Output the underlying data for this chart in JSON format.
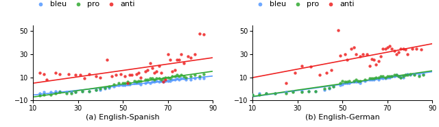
{
  "title_a": "(a) English-Spanish",
  "title_b": "(b) English-German",
  "legend_labels": [
    "bleu",
    "pro",
    "anti"
  ],
  "colors": {
    "bleu": "#5599ff",
    "pro": "#33aa33",
    "anti": "#ee2222"
  },
  "xlim": [
    10,
    90
  ],
  "ylim": [
    -10,
    55
  ],
  "yticks": [
    -10,
    10,
    30,
    50
  ],
  "xticks": [
    10,
    30,
    50,
    70,
    90
  ],
  "es_bleu_x": [
    13,
    15,
    18,
    20,
    22,
    25,
    27,
    29,
    32,
    35,
    38,
    40,
    42,
    44,
    46,
    48,
    50,
    51,
    52,
    53,
    55,
    56,
    57,
    58,
    60,
    61,
    62,
    63,
    64,
    65,
    66,
    67,
    68,
    69,
    70,
    71,
    72,
    73,
    74,
    75,
    76,
    77,
    78,
    80,
    82,
    84,
    86
  ],
  "es_bleu_y": [
    -4,
    -3,
    -3,
    -2,
    -2,
    -3,
    -3,
    -3,
    -2,
    -2,
    -1,
    -1,
    0,
    1,
    2,
    3,
    3,
    3,
    4,
    4,
    5,
    5,
    5,
    4,
    5,
    6,
    5,
    6,
    6,
    7,
    6,
    7,
    6,
    7,
    7,
    7,
    8,
    8,
    9,
    8,
    9,
    9,
    8,
    8,
    9,
    9,
    9
  ],
  "es_pro_x": [
    13,
    15,
    18,
    20,
    22,
    25,
    27,
    29,
    32,
    35,
    38,
    40,
    42,
    44,
    46,
    48,
    50,
    51,
    52,
    53,
    55,
    56,
    57,
    58,
    60,
    61,
    62,
    63,
    64,
    65,
    66,
    67,
    68,
    69,
    70,
    71,
    72,
    73,
    74,
    75,
    76,
    77,
    78,
    80,
    82,
    84,
    86
  ],
  "es_pro_y": [
    -6,
    -5,
    -5,
    -4,
    -3,
    -4,
    -4,
    -3,
    -2,
    -2,
    -1,
    0,
    1,
    2,
    4,
    5,
    5,
    5,
    6,
    5,
    7,
    6,
    7,
    7,
    8,
    8,
    9,
    9,
    8,
    9,
    9,
    8,
    9,
    10,
    10,
    9,
    11,
    11,
    12,
    11,
    12,
    11,
    10,
    11,
    12,
    11,
    13
  ],
  "es_anti_x": [
    13,
    15,
    16,
    20,
    22,
    26,
    29,
    31,
    33,
    35,
    38,
    40,
    43,
    45,
    47,
    49,
    51,
    52,
    53,
    54,
    56,
    57,
    58,
    60,
    61,
    62,
    63,
    64,
    65,
    66,
    67,
    68,
    69,
    70,
    71,
    72,
    73,
    74,
    75,
    76,
    77,
    79,
    80,
    82,
    84,
    86
  ],
  "es_anti_y": [
    14,
    13,
    8,
    14,
    13,
    13,
    12,
    12,
    9,
    13,
    11,
    10,
    25,
    11,
    12,
    13,
    11,
    5,
    12,
    12,
    13,
    14,
    10,
    15,
    16,
    22,
    18,
    14,
    15,
    20,
    14,
    6,
    8,
    30,
    25,
    15,
    16,
    25,
    25,
    30,
    22,
    28,
    27,
    30,
    48,
    47
  ],
  "de_bleu_x": [
    10,
    13,
    16,
    20,
    25,
    28,
    32,
    35,
    38,
    42,
    44,
    46,
    49,
    50,
    51,
    52,
    53,
    55,
    56,
    57,
    58,
    60,
    62,
    63,
    64,
    65,
    66,
    67,
    68,
    69,
    70,
    71,
    72,
    73,
    74,
    75,
    76,
    77,
    78,
    79,
    80,
    82,
    84,
    86
  ],
  "de_bleu_y": [
    -5,
    -4,
    -4,
    -4,
    -3,
    -2,
    -2,
    -2,
    -2,
    -1,
    0,
    2,
    3,
    4,
    5,
    5,
    5,
    6,
    6,
    6,
    5,
    7,
    8,
    8,
    8,
    9,
    8,
    10,
    9,
    9,
    10,
    10,
    11,
    11,
    12,
    11,
    10,
    10,
    12,
    13,
    12,
    13,
    12,
    13
  ],
  "de_pro_x": [
    10,
    13,
    16,
    20,
    25,
    28,
    32,
    35,
    38,
    42,
    44,
    46,
    49,
    50,
    51,
    52,
    53,
    55,
    56,
    57,
    58,
    60,
    62,
    63,
    64,
    65,
    66,
    67,
    68,
    69,
    70,
    71,
    72,
    73,
    74,
    75,
    76,
    77,
    78,
    79,
    80,
    82,
    84,
    86
  ],
  "de_pro_y": [
    -5,
    -5,
    -4,
    -4,
    -4,
    -3,
    -3,
    -2,
    -2,
    0,
    1,
    2,
    5,
    7,
    6,
    6,
    7,
    7,
    8,
    7,
    7,
    8,
    9,
    9,
    9,
    10,
    10,
    11,
    11,
    10,
    11,
    11,
    11,
    12,
    12,
    11,
    10,
    11,
    12,
    12,
    13,
    12,
    11,
    12
  ],
  "de_anti_x": [
    25,
    29,
    32,
    36,
    40,
    43,
    45,
    48,
    49,
    51,
    52,
    54,
    55,
    56,
    58,
    59,
    61,
    62,
    63,
    64,
    65,
    66,
    67,
    68,
    69,
    70,
    71,
    72,
    73,
    74,
    75,
    76,
    77,
    78,
    79,
    81,
    83,
    85
  ],
  "de_anti_y": [
    5,
    14,
    20,
    19,
    12,
    14,
    16,
    51,
    29,
    30,
    25,
    35,
    36,
    30,
    28,
    30,
    30,
    20,
    26,
    25,
    21,
    24,
    28,
    35,
    35,
    36,
    37,
    35,
    33,
    30,
    32,
    35,
    35,
    34,
    30,
    35,
    35,
    34
  ],
  "marker_size": 10,
  "line_width": 1.2,
  "font_size_label": 8,
  "font_size_legend": 8,
  "font_size_tick": 7,
  "es_anti_line_x0": 10,
  "es_anti_line_y0": 5.0,
  "es_anti_line_x1": 90,
  "es_anti_line_y1": 28.0,
  "de_anti_line_x0": 10,
  "de_anti_line_y0": 8.0,
  "de_anti_line_x1": 90,
  "de_anti_line_y1": 33.0
}
